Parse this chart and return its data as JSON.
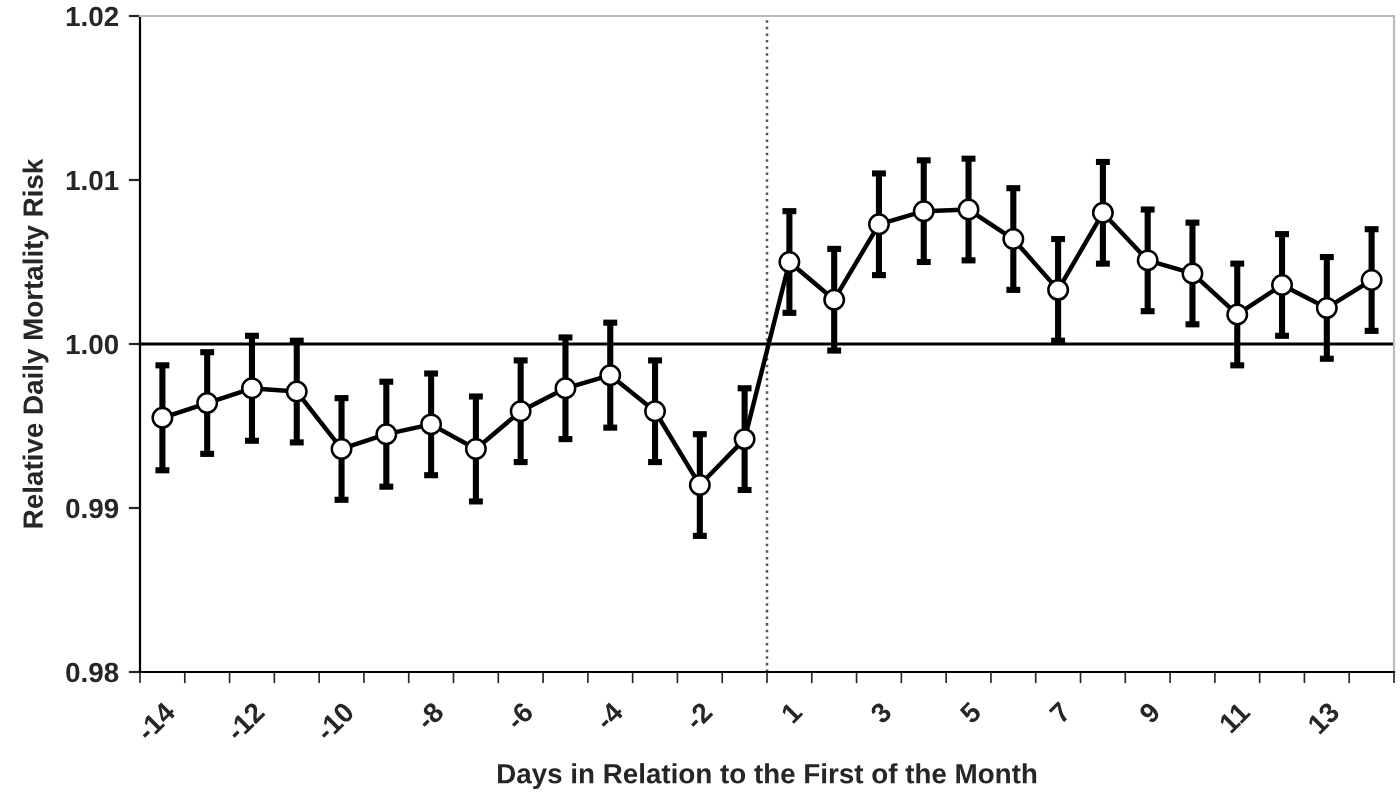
{
  "chart_data": {
    "type": "line",
    "xlabel": "Days in Relation to the First of the Month",
    "ylabel": "Relative Daily Mortality Risk",
    "categories": [
      "-14",
      null,
      "-12",
      null,
      "-10",
      null,
      "-8",
      null,
      "-6",
      null,
      "-4",
      null,
      "-2",
      null,
      "1",
      null,
      "3",
      null,
      "5",
      null,
      "7",
      null,
      "9",
      null,
      "11",
      null,
      "13",
      null
    ],
    "series": [
      {
        "color": "#000000",
        "values": [
          0.9955,
          0.9964,
          0.9973,
          0.9971,
          0.9936,
          0.9945,
          0.9951,
          0.9936,
          0.9959,
          0.9973,
          0.9981,
          0.9959,
          0.9914,
          0.9942,
          1.005,
          1.0027,
          1.0073,
          1.0081,
          1.0082,
          1.0064,
          1.0033,
          1.008,
          1.0051,
          1.0043,
          1.0018,
          1.0036,
          1.0022,
          1.0039
        ],
        "errors": [
          0.0032,
          0.0031,
          0.0032,
          0.0031,
          0.0031,
          0.0032,
          0.0031,
          0.0032,
          0.0031,
          0.0031,
          0.0032,
          0.0031,
          0.0031,
          0.0031,
          0.0031,
          0.0031,
          0.0031,
          0.0031,
          0.0031,
          0.0031,
          0.0031,
          0.0031,
          0.0031,
          0.0031,
          0.0031,
          0.0031,
          0.0031,
          0.0031
        ]
      }
    ],
    "ylim": [
      0.98,
      1.02
    ],
    "yticks": [
      0.98,
      0.99,
      {
        "value": 1.0,
        "label": "1.00"
      },
      1.01,
      1.02
    ],
    "ref_lines": [
      {
        "axis": "y",
        "value": 1.0,
        "color": "#000000",
        "line_style": "solid"
      },
      {
        "axis": "x",
        "value": "1",
        "color": "#555555",
        "line_style": "dotted"
      }
    ],
    "marker": "circle",
    "line_style": "solid",
    "grid": false,
    "legend": false
  }
}
